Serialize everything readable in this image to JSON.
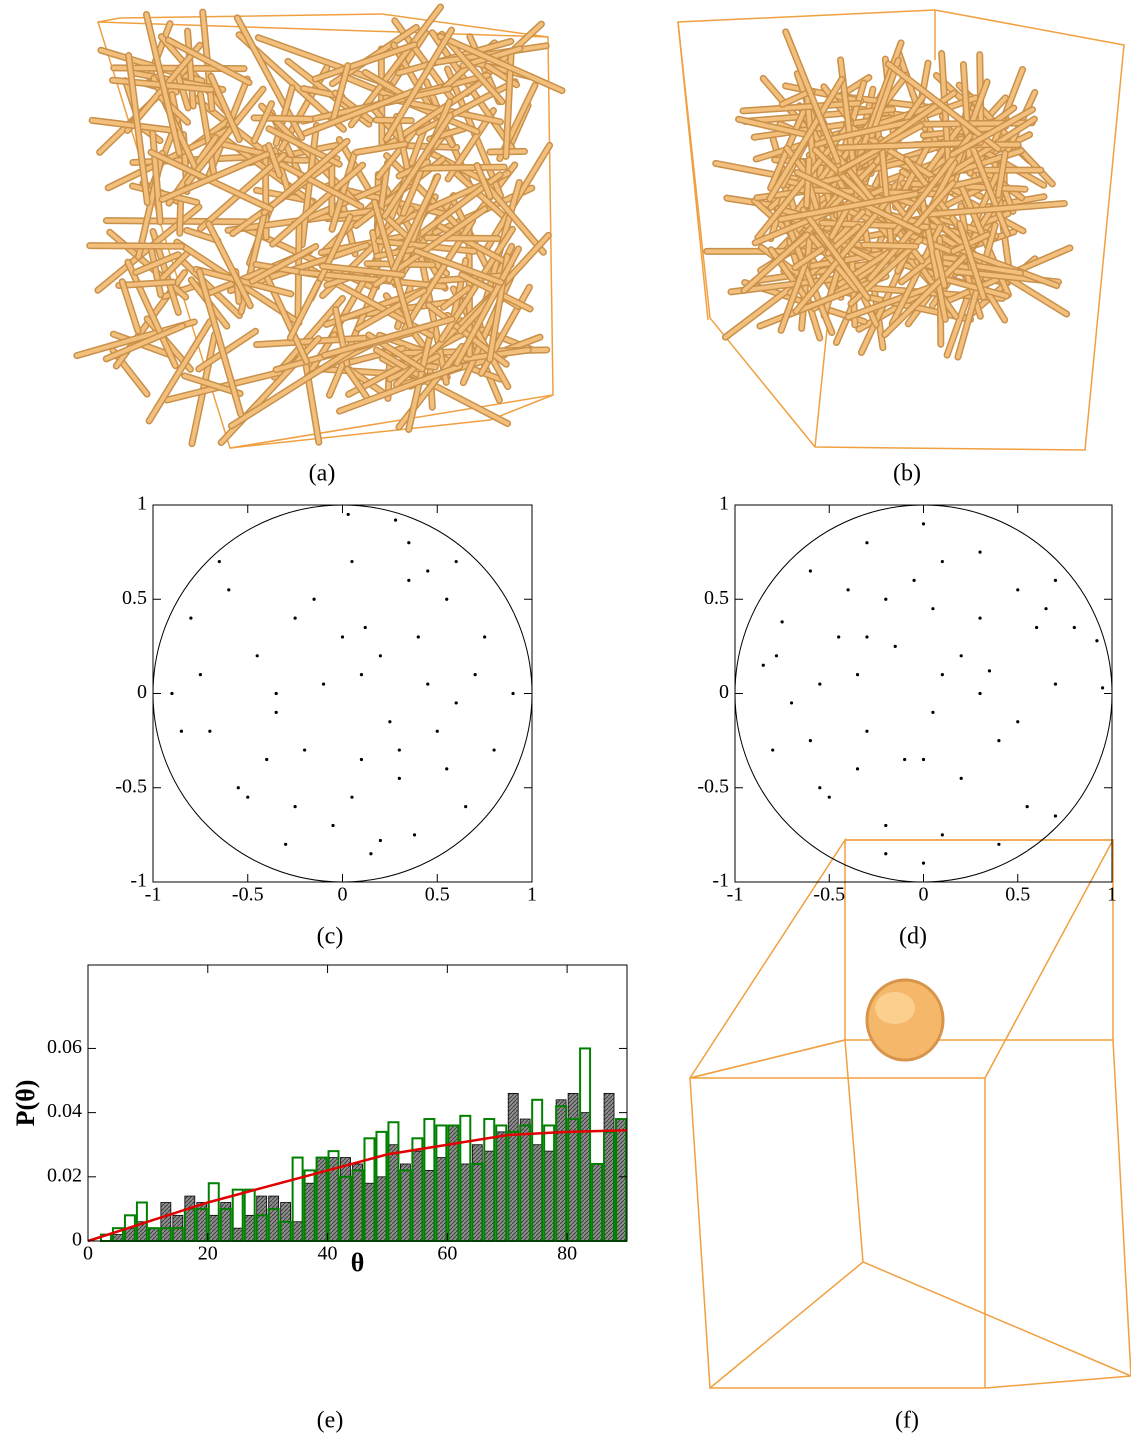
{
  "captions": [
    "(a)",
    "(b)",
    "(c)",
    "(d)",
    "(e)",
    "(f)"
  ],
  "chart_data": [
    {
      "type": "scatter",
      "x": [
        0.03,
        0.05,
        0.28,
        0.35,
        -0.6,
        0.12,
        -0.25,
        0.4,
        0.55,
        -0.8,
        0.7,
        -0.45,
        0.2,
        -0.1,
        0.45,
        -0.35,
        0.6,
        -0.7,
        0.8,
        0.1,
        -0.2,
        0.3,
        -0.55,
        0.65,
        -0.05,
        0.38,
        -0.3,
        0.15,
        -0.65,
        0.9,
        -0.9,
        0.5,
        -0.4,
        0.25,
        0.0,
        -0.15,
        0.75,
        -0.85,
        0.35,
        -0.5,
        0.05,
        0.2,
        -0.25,
        0.45,
        -0.75,
        0.6,
        0.1,
        -0.35,
        0.3,
        0.55
      ],
      "values": [
        0.95,
        0.7,
        0.92,
        0.6,
        0.55,
        0.35,
        0.4,
        0.3,
        0.5,
        0.4,
        0.1,
        0.2,
        0.2,
        0.05,
        0.05,
        -0.1,
        -0.05,
        -0.2,
        -0.3,
        -0.35,
        -0.3,
        -0.45,
        -0.5,
        -0.6,
        -0.7,
        -0.75,
        -0.8,
        -0.85,
        0.7,
        0.0,
        0.0,
        -0.2,
        -0.35,
        -0.15,
        0.3,
        0.5,
        0.3,
        -0.2,
        0.8,
        -0.55,
        -0.55,
        -0.78,
        -0.6,
        0.65,
        0.1,
        0.7,
        0.1,
        0.0,
        -0.3,
        -0.4
      ],
      "color": "#000000",
      "xlim": [
        -1,
        1
      ],
      "ylim": [
        -1,
        1
      ],
      "xticks": [
        -1,
        -0.5,
        0,
        0.5,
        1
      ],
      "yticks": [
        -1,
        -0.5,
        0,
        0.5,
        1
      ]
    },
    {
      "type": "scatter",
      "x": [
        0.95,
        0.7,
        0.92,
        0.6,
        0.55,
        0.35,
        0.4,
        0.3,
        0.5,
        0.4,
        0.1,
        0.2,
        0.2,
        0.05,
        0.05,
        -0.1,
        -0.05,
        -0.2,
        -0.3,
        -0.35,
        -0.3,
        -0.45,
        -0.5,
        -0.6,
        -0.7,
        -0.75,
        -0.8,
        -0.85,
        0.7,
        0.0,
        0.0,
        -0.2,
        -0.35,
        -0.15,
        0.3,
        0.5,
        0.3,
        -0.2,
        0.8,
        -0.55,
        -0.55,
        -0.78,
        -0.6,
        0.65,
        0.1,
        0.7,
        0.1,
        0.0,
        -0.3,
        -0.4
      ],
      "values": [
        0.03,
        0.05,
        0.28,
        0.35,
        -0.6,
        0.12,
        -0.25,
        0.4,
        0.55,
        -0.8,
        0.7,
        -0.45,
        0.2,
        -0.1,
        0.45,
        -0.35,
        0.6,
        -0.7,
        0.8,
        0.1,
        -0.2,
        0.3,
        -0.55,
        0.65,
        -0.05,
        0.38,
        -0.3,
        0.15,
        -0.65,
        0.9,
        -0.9,
        0.5,
        -0.4,
        0.25,
        0.0,
        -0.15,
        0.75,
        -0.85,
        0.35,
        -0.5,
        0.05,
        0.2,
        -0.25,
        0.45,
        -0.75,
        0.6,
        0.1,
        -0.35,
        0.3,
        0.55
      ],
      "color": "#000000",
      "xlim": [
        -1,
        1
      ],
      "ylim": [
        -1,
        1
      ],
      "xticks": [
        -1,
        -0.5,
        0,
        0.5,
        1
      ],
      "yticks": [
        -1,
        -0.5,
        0,
        0.5,
        1
      ]
    },
    {
      "type": "histogram",
      "x_label": "θ",
      "y_label": "P(θ)",
      "bins": [
        0,
        2,
        4,
        6,
        8,
        10,
        12,
        14,
        16,
        18,
        20,
        22,
        24,
        26,
        28,
        30,
        32,
        34,
        36,
        38,
        40,
        42,
        44,
        46,
        48,
        50,
        52,
        54,
        56,
        58,
        60,
        62,
        64,
        66,
        68,
        70,
        72,
        74,
        76,
        78,
        80,
        82,
        84,
        86,
        88,
        90
      ],
      "series": [
        {
          "color": "#8c8c8c",
          "filled": true,
          "values": [
            0,
            0,
            0.002,
            0.004,
            0.006,
            0.004,
            0.012,
            0.008,
            0.014,
            0.012,
            0.008,
            0.012,
            0.004,
            0.008,
            0.014,
            0.014,
            0.012,
            0.006,
            0.018,
            0.026,
            0.026,
            0.026,
            0.024,
            0.018,
            0.02,
            0.03,
            0.024,
            0.028,
            0.022,
            0.026,
            0.036,
            0.024,
            0.03,
            0.028,
            0.034,
            0.046,
            0.038,
            0.03,
            0.028,
            0.044,
            0.046,
            0.04,
            0.024,
            0.046,
            0.038
          ]
        },
        {
          "color": "#008000",
          "filled": false,
          "values": [
            0,
            0.002,
            0.004,
            0.008,
            0.012,
            0.004,
            0.004,
            0.004,
            0.01,
            0.01,
            0.018,
            0.01,
            0.016,
            0.016,
            0.008,
            0.01,
            0.006,
            0.026,
            0.022,
            0.026,
            0.028,
            0.02,
            0.022,
            0.032,
            0.034,
            0.037,
            0.022,
            0.032,
            0.038,
            0.036,
            0.036,
            0.039,
            0.024,
            0.038,
            0.036,
            0.034,
            0.036,
            0.044,
            0.036,
            0.042,
            0.038,
            0.06,
            0.024,
            0.034,
            0.038
          ]
        }
      ],
      "curve": {
        "color": "#e00000",
        "x": [
          0,
          10,
          20,
          30,
          40,
          50,
          60,
          70,
          80,
          90
        ],
        "values": [
          0,
          0.006,
          0.012,
          0.017,
          0.022,
          0.027,
          0.03,
          0.033,
          0.034,
          0.0345
        ]
      },
      "xlim": [
        0,
        90
      ],
      "ylim": [
        0,
        0.086
      ],
      "xticks": [
        0,
        20,
        40,
        60,
        80
      ],
      "yticks": [
        0,
        0.02,
        0.04,
        0.06
      ]
    }
  ]
}
